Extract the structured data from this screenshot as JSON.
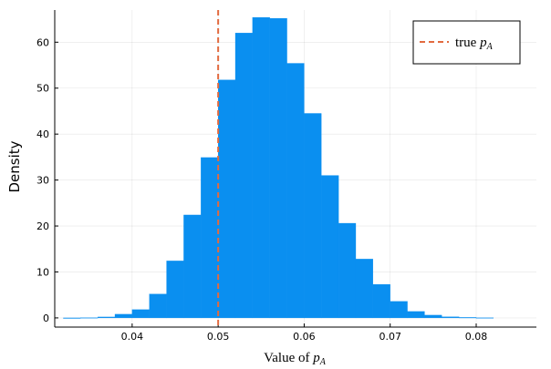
{
  "chart_data": {
    "type": "bar",
    "title": "",
    "xlabel_prefix": "Value of ",
    "xlabel_var": "p",
    "xlabel_sub": "A",
    "ylabel": "Density",
    "xlim": [
      0.031,
      0.087
    ],
    "ylim": [
      -2,
      67
    ],
    "xticks": [
      0.04,
      0.05,
      0.06,
      0.07,
      0.08
    ],
    "xtick_labels": [
      "0.04",
      "0.05",
      "0.06",
      "0.07",
      "0.08"
    ],
    "yticks": [
      0,
      10,
      20,
      30,
      40,
      50,
      60
    ],
    "ytick_labels": [
      "0",
      "10",
      "20",
      "30",
      "40",
      "50",
      "60"
    ],
    "grid": true,
    "bin_width": 0.002,
    "bins": [
      {
        "start": 0.032,
        "value": 0.0
      },
      {
        "start": 0.034,
        "value": 0.05
      },
      {
        "start": 0.036,
        "value": 0.2
      },
      {
        "start": 0.038,
        "value": 0.8
      },
      {
        "start": 0.04,
        "value": 1.8
      },
      {
        "start": 0.042,
        "value": 5.2
      },
      {
        "start": 0.044,
        "value": 12.4
      },
      {
        "start": 0.046,
        "value": 22.4
      },
      {
        "start": 0.048,
        "value": 34.9
      },
      {
        "start": 0.05,
        "value": 51.8
      },
      {
        "start": 0.052,
        "value": 62.0
      },
      {
        "start": 0.054,
        "value": 65.4
      },
      {
        "start": 0.056,
        "value": 65.2
      },
      {
        "start": 0.058,
        "value": 55.4
      },
      {
        "start": 0.06,
        "value": 44.5
      },
      {
        "start": 0.062,
        "value": 31.0
      },
      {
        "start": 0.064,
        "value": 20.6
      },
      {
        "start": 0.066,
        "value": 12.8
      },
      {
        "start": 0.068,
        "value": 7.3
      },
      {
        "start": 0.07,
        "value": 3.6
      },
      {
        "start": 0.072,
        "value": 1.4
      },
      {
        "start": 0.074,
        "value": 0.6
      },
      {
        "start": 0.076,
        "value": 0.25
      },
      {
        "start": 0.078,
        "value": 0.1
      },
      {
        "start": 0.08,
        "value": 0.03
      }
    ],
    "bar_color": "#0a8ff0",
    "true_value": 0.05,
    "true_line_color": "#e26a3f",
    "legend": {
      "label_prefix": "true ",
      "label_var": "p",
      "label_sub": "A",
      "position": "top-right"
    }
  }
}
